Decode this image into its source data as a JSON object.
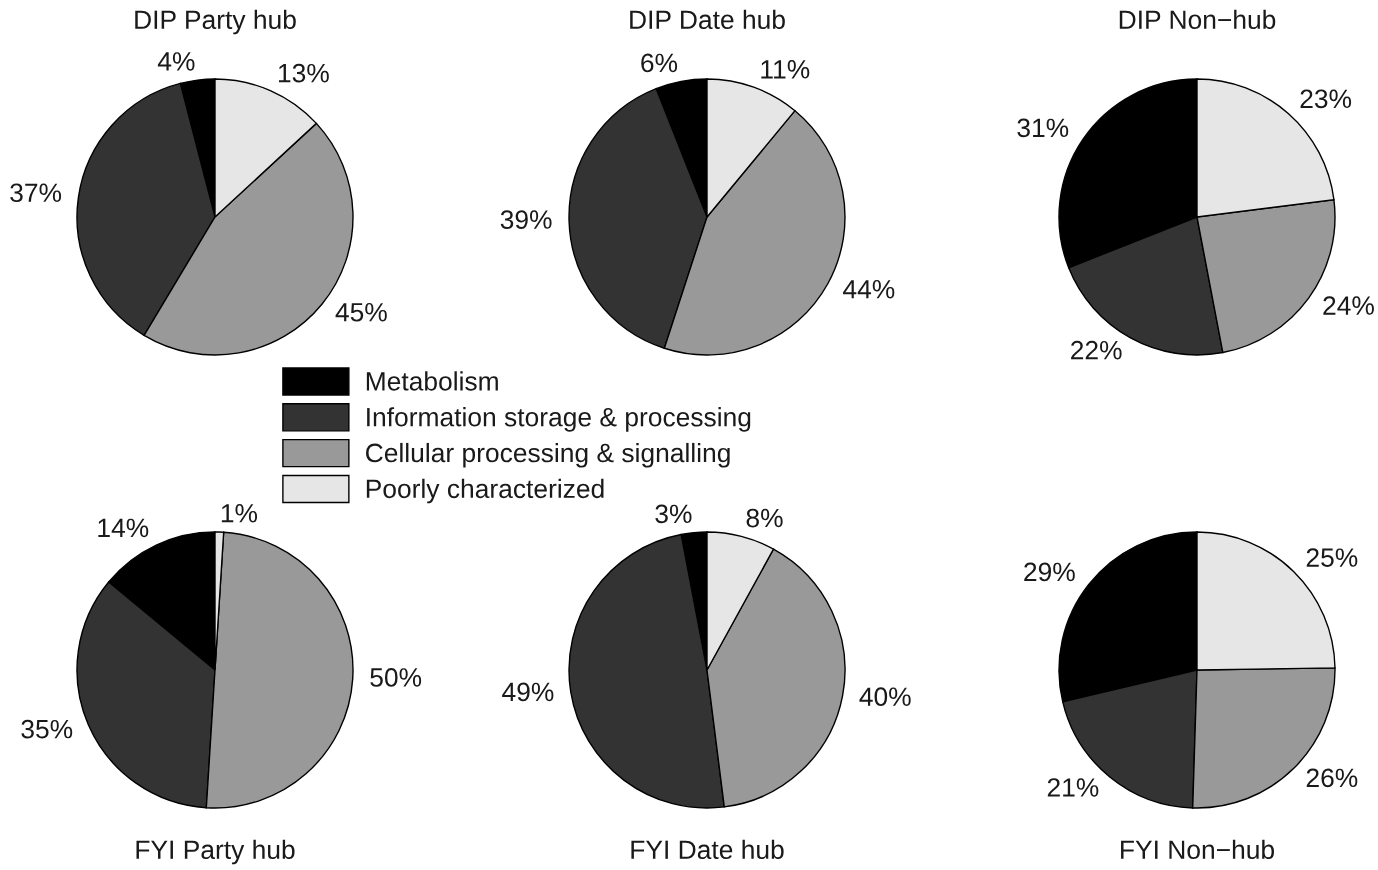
{
  "chart_data": [
    {
      "type": "pie",
      "title": "DIP Party hub",
      "categories": [
        "Metabolism",
        "Information storage & processing",
        "Cellular processing & signalling",
        "Poorly characterized"
      ],
      "values": [
        4,
        37,
        45,
        13
      ],
      "colors": [
        "#000000",
        "#333333",
        "#999999",
        "#e6e6e6"
      ],
      "value_labels": [
        "4%",
        "37%",
        "45%",
        "13%"
      ],
      "legend": "bottom right"
    },
    {
      "type": "pie",
      "title": "DIP Date hub",
      "categories": [
        null,
        null,
        null,
        null
      ],
      "values": [
        6,
        39,
        44,
        11
      ],
      "colors": [
        "#000000",
        "#333333",
        "#999999",
        "#e6e6e6"
      ],
      "value_labels": [
        "6%",
        "39%",
        "44%",
        "11%"
      ]
    },
    {
      "type": "pie",
      "title": "DIP Non−hub",
      "categories": [
        null,
        null,
        null,
        null
      ],
      "values": [
        31,
        22,
        24,
        23
      ],
      "colors": [
        "#000000",
        "#333333",
        "#999999",
        "#e6e6e6"
      ],
      "value_labels": [
        "31%",
        "22%",
        "24%",
        "23%"
      ]
    },
    {
      "type": "pie",
      "title": "FYI Party hub",
      "categories": [
        null,
        null,
        null,
        null
      ],
      "values": [
        14,
        35,
        50,
        1
      ],
      "colors": [
        "#000000",
        "#333333",
        "#999999",
        "#e6e6e6"
      ],
      "value_labels": [
        "14%",
        "35%",
        "50%",
        "1%"
      ]
    },
    {
      "type": "pie",
      "title": "FYI Date hub",
      "categories": [
        null,
        null,
        null,
        null
      ],
      "values": [
        3,
        49,
        40,
        8
      ],
      "colors": [
        "#000000",
        "#333333",
        "#999999",
        "#e6e6e6"
      ],
      "value_labels": [
        "3%",
        "49%",
        "40%",
        "8%"
      ]
    },
    {
      "type": "pie",
      "title": "FYI Non−hub",
      "categories": [
        null,
        null,
        null,
        null
      ],
      "values": [
        29,
        21,
        26,
        25
      ],
      "colors": [
        "#000000",
        "#333333",
        "#999999",
        "#e6e6e6"
      ],
      "value_labels": [
        "29%",
        "21%",
        "26%",
        "25%"
      ]
    }
  ]
}
